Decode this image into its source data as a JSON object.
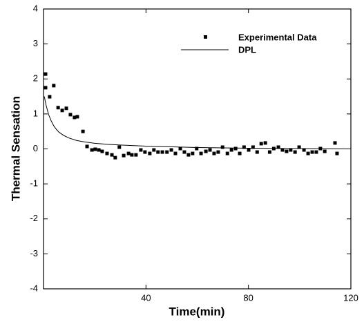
{
  "chart_data": {
    "type": "scatter",
    "xlabel": "Time(min)",
    "ylabel": "Thermal Sensation",
    "xlim": [
      0,
      120
    ],
    "xticks": [
      40,
      80,
      120
    ],
    "ylim": [
      -4,
      4
    ],
    "yticks": [
      -4,
      -3,
      -2,
      -1,
      0,
      1,
      2,
      3,
      4
    ],
    "legend": "upper right",
    "series": [
      {
        "name": "Experimental Data",
        "kind": "scatter",
        "color": "#000000",
        "x": [
          0.8,
          0.8,
          2.4,
          4.0,
          5.7,
          7.3,
          8.9,
          10.5,
          12.1,
          13.2,
          15.4,
          17.0,
          18.9,
          20.2,
          21.6,
          22.9,
          24.8,
          26.7,
          28.0,
          29.6,
          31.3,
          33.2,
          34.5,
          36.1,
          38.0,
          39.6,
          41.5,
          43.1,
          44.7,
          46.4,
          48.2,
          49.9,
          51.5,
          53.4,
          55.0,
          56.6,
          58.2,
          59.8,
          61.5,
          63.4,
          65.0,
          66.6,
          68.2,
          69.9,
          71.8,
          73.4,
          75.0,
          76.6,
          78.3,
          80.1,
          81.8,
          83.4,
          85.0,
          86.6,
          88.3,
          89.9,
          91.7,
          93.3,
          94.9,
          96.5,
          98.2,
          99.8,
          101.7,
          103.3,
          104.9,
          106.5,
          108.1,
          109.8,
          113.8,
          114.6
        ],
        "values": [
          2.14,
          1.75,
          1.49,
          1.81,
          1.18,
          1.1,
          1.16,
          0.98,
          0.9,
          0.92,
          0.5,
          0.07,
          -0.03,
          -0.01,
          -0.03,
          -0.07,
          -0.13,
          -0.17,
          -0.25,
          0.05,
          -0.19,
          -0.13,
          -0.17,
          -0.17,
          -0.03,
          -0.09,
          -0.13,
          -0.03,
          -0.09,
          -0.09,
          -0.09,
          -0.03,
          -0.13,
          0.01,
          -0.09,
          -0.17,
          -0.13,
          0.01,
          -0.13,
          -0.07,
          -0.03,
          -0.13,
          -0.09,
          0.05,
          -0.13,
          -0.03,
          0.01,
          -0.13,
          0.05,
          -0.03,
          0.05,
          -0.09,
          0.15,
          0.17,
          -0.09,
          0.01,
          0.05,
          -0.03,
          -0.07,
          -0.03,
          -0.09,
          0.05,
          -0.03,
          -0.13,
          -0.09,
          -0.09,
          0.01,
          -0.07,
          0.17,
          -0.13
        ]
      },
      {
        "name": "DPL",
        "kind": "line",
        "color": "#000000",
        "x": [
          0.3,
          1,
          2,
          3,
          4,
          5,
          6,
          8,
          10,
          13,
          16,
          20,
          25,
          30,
          40,
          50,
          60,
          80,
          100,
          120
        ],
        "values": [
          1.5,
          1.25,
          0.98,
          0.8,
          0.66,
          0.56,
          0.48,
          0.38,
          0.31,
          0.24,
          0.2,
          0.16,
          0.13,
          0.11,
          0.08,
          0.06,
          0.04,
          0.02,
          0.01,
          0.0
        ]
      }
    ]
  }
}
